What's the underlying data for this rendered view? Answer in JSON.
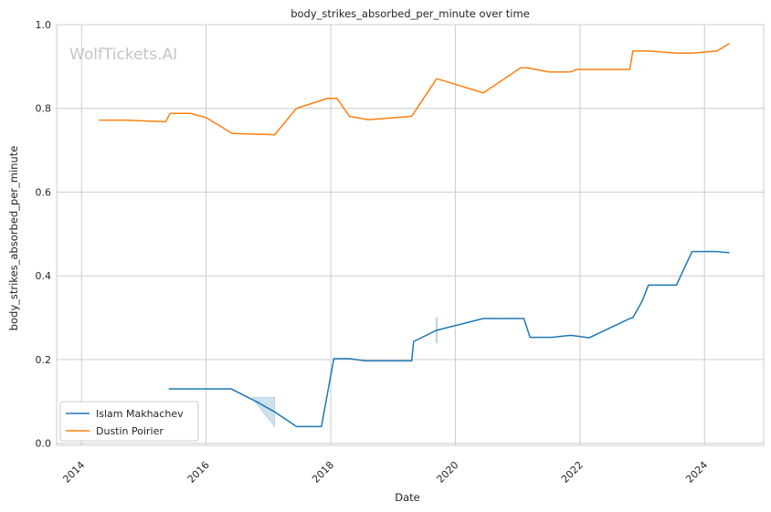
{
  "chart_data": {
    "type": "line",
    "title": "body_strikes_absorbed_per_minute over time",
    "xlabel": "Date",
    "ylabel": "body_strikes_absorbed_per_minute",
    "watermark": "WolfTickets.AI",
    "xlim": [
      2013.6,
      2024.95
    ],
    "ylim": [
      -0.005,
      1.0
    ],
    "x_ticks": [
      2014,
      2016,
      2018,
      2020,
      2022,
      2024
    ],
    "x_tick_labels": [
      "2014",
      "2016",
      "2018",
      "2020",
      "2022",
      "2024"
    ],
    "y_ticks": [
      0.0,
      0.2,
      0.4,
      0.6,
      0.8,
      1.0
    ],
    "y_tick_labels": [
      "0.0",
      "0.2",
      "0.4",
      "0.6",
      "0.8",
      "1.0"
    ],
    "grid": true,
    "legend_position": "lower-left",
    "series": [
      {
        "name": "Islam Makhachev",
        "color": "#1f77b4",
        "x": [
          2015.4,
          2016.4,
          2016.8,
          2017.1,
          2017.45,
          2017.85,
          2018.05,
          2018.3,
          2018.55,
          2019.3,
          2019.33,
          2019.7,
          2020.45,
          2021.1,
          2021.2,
          2021.35,
          2021.55,
          2021.85,
          2021.95,
          2022.15,
          2022.8,
          2022.85,
          2023.0,
          2023.1,
          2023.55,
          2023.8,
          2024.2,
          2024.4
        ],
        "y": [
          0.13,
          0.13,
          0.1,
          0.075,
          0.04,
          0.04,
          0.202,
          0.202,
          0.197,
          0.197,
          0.243,
          0.27,
          0.298,
          0.298,
          0.253,
          0.253,
          0.253,
          0.258,
          0.256,
          0.252,
          0.298,
          0.3,
          0.34,
          0.378,
          0.378,
          0.458,
          0.458,
          0.455
        ]
      },
      {
        "name": "Dustin Poirier",
        "color": "#ff7f0e",
        "x": [
          2014.28,
          2014.7,
          2015.35,
          2015.42,
          2015.75,
          2016.0,
          2016.42,
          2017.1,
          2017.45,
          2017.95,
          2018.1,
          2018.3,
          2018.6,
          2019.3,
          2019.7,
          2020.45,
          2021.05,
          2021.15,
          2021.5,
          2021.85,
          2021.95,
          2022.8,
          2022.85,
          2023.1,
          2023.55,
          2023.8,
          2024.2,
          2024.4
        ],
        "y": [
          0.772,
          0.772,
          0.768,
          0.788,
          0.788,
          0.778,
          0.74,
          0.737,
          0.8,
          0.824,
          0.824,
          0.781,
          0.773,
          0.781,
          0.871,
          0.837,
          0.897,
          0.897,
          0.887,
          0.887,
          0.893,
          0.893,
          0.937,
          0.937,
          0.932,
          0.932,
          0.937,
          0.955
        ]
      }
    ],
    "bands": [
      {
        "series": "Islam Makhachev",
        "x": [
          2016.75,
          2017.1
        ],
        "y_low": [
          0.105,
          0.04
        ],
        "y_high": [
          0.11,
          0.11
        ]
      },
      {
        "series": "Islam Makhachev",
        "x": [
          2019.69,
          2019.71
        ],
        "y_low": [
          0.24,
          0.24
        ],
        "y_high": [
          0.3,
          0.3
        ]
      }
    ]
  }
}
